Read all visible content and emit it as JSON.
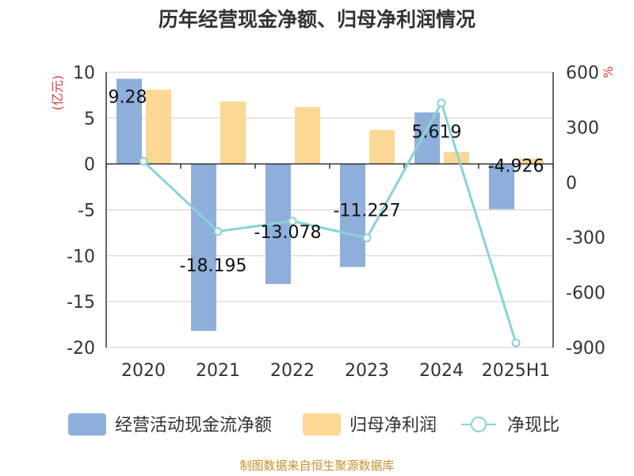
{
  "chart_data": {
    "type": "bar",
    "title": "历年经营现金净额、归母净利润情况",
    "categories": [
      "2020",
      "2021",
      "2022",
      "2023",
      "2024",
      "2025H1"
    ],
    "y_left": {
      "unit": "(亿元)",
      "ylim": [
        -20,
        10
      ],
      "ticks": [
        "10",
        "5",
        "0",
        "-5",
        "-10",
        "-15",
        "-20"
      ]
    },
    "y_right": {
      "unit": "%",
      "ylim": [
        -900,
        600
      ],
      "ticks": [
        "600",
        "300",
        "0",
        "-300",
        "-600",
        "-900"
      ]
    },
    "series": [
      {
        "name": "经营活动现金流净额",
        "type": "bar",
        "axis": "left",
        "color": "#8eaedb",
        "values": [
          9.28,
          -18.195,
          -13.078,
          -11.227,
          5.619,
          -4.926
        ],
        "labels": [
          "9.28",
          "-18.195",
          "-13.078",
          "-11.227",
          "5.619",
          "-4.926"
        ]
      },
      {
        "name": "归母净利润",
        "type": "bar",
        "axis": "left",
        "color": "#fdd794",
        "values": [
          8.1,
          6.8,
          6.2,
          3.7,
          1.3,
          0.6
        ]
      },
      {
        "name": "净现比",
        "type": "line",
        "axis": "right",
        "color": "#87d3d6",
        "values": [
          114.6,
          -267.6,
          -210.9,
          -303.4,
          432.2,
          -875.4
        ]
      }
    ],
    "grid": true,
    "legend_position": "bottom"
  },
  "footer": {
    "source": "制图数据来自恒生聚源数据库",
    "source_color": "#c8902c"
  },
  "colors": {
    "axis_unit": "#e23a3a",
    "grid": "#cccccc",
    "axis": "#333333"
  }
}
